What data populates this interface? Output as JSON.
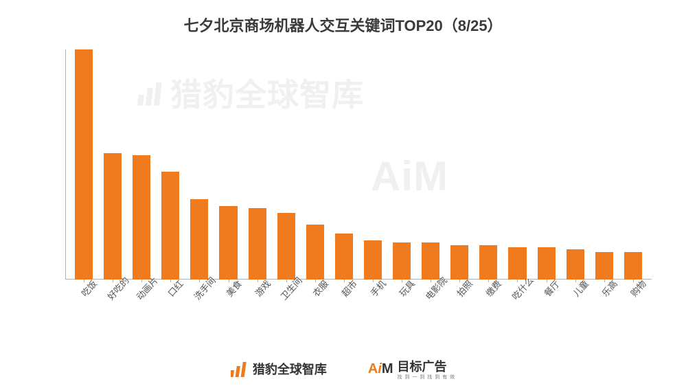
{
  "title": "七夕北京商场机器人交互关键词TOP20（8/25）",
  "title_fontsize": 22,
  "title_color": "#3a3a3a",
  "chart": {
    "type": "bar",
    "categories": [
      "吃饭",
      "好吃的",
      "动画片",
      "口红",
      "洗手间",
      "美食",
      "游戏",
      "卫生间",
      "衣服",
      "超市",
      "手机",
      "玩具",
      "电影院",
      "拍照",
      "缴费",
      "吃什么",
      "餐厅",
      "儿童",
      "乐高",
      "购物"
    ],
    "values": [
      100,
      55,
      54,
      47,
      35,
      32,
      31,
      29,
      24,
      20,
      17,
      16,
      16,
      15,
      15,
      14,
      14,
      13,
      12,
      12
    ],
    "bar_color": "#ef7b1e",
    "axis_color": "#b0b0b0",
    "xlabel_fontsize": 13,
    "xlabel_color": "#555555",
    "xlabel_rotation": -48,
    "ylim": [
      0,
      100
    ],
    "background_color": "#ffffff",
    "bar_width_ratio": 0.62
  },
  "watermark": {
    "text1": "猎豹全球智库",
    "text2": "AiM",
    "color": "#f0f0f0",
    "fontsize": 46
  },
  "footer": {
    "brand1_label": "猎豹全球智库",
    "brand1_icon_color": "#ee7b1e",
    "brand2_prefix_A": "A",
    "brand2_prefix_i": "i",
    "brand2_prefix_M": "M",
    "brand2_label": "目标广告",
    "brand2_sub": "找 到 一 到   找 到 有 效"
  }
}
